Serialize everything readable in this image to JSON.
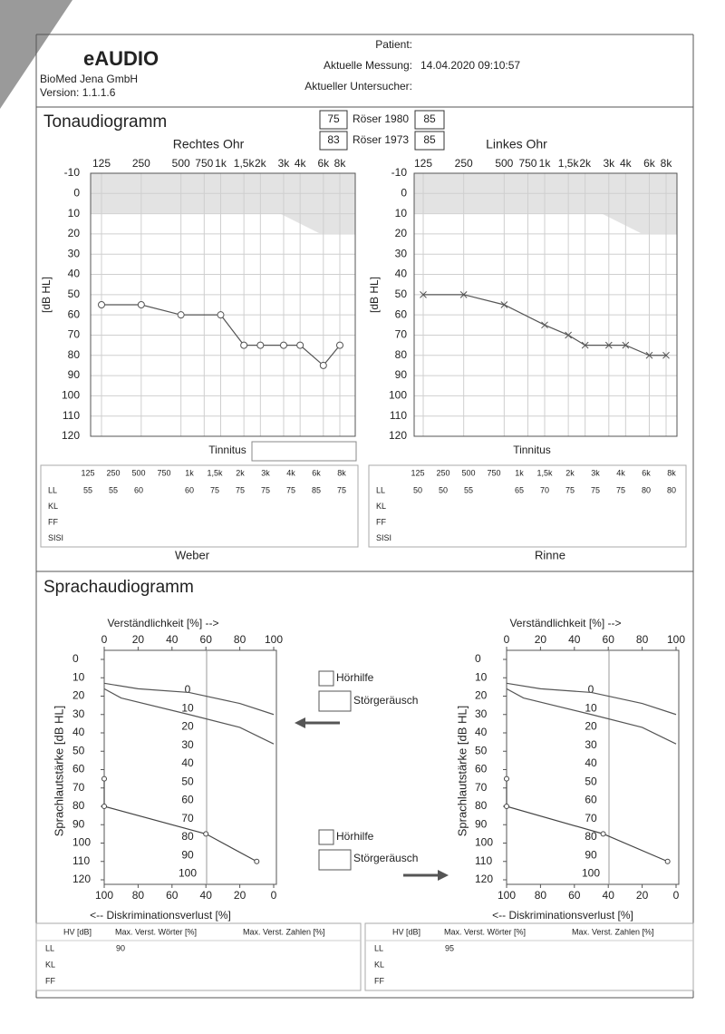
{
  "header": {
    "logo": "eAUDIO",
    "company": "BioMed Jena GmbH",
    "version": "Version: 1.1.1.6",
    "patient_label": "Patient:",
    "measurement_label": "Aktuelle Messung:",
    "measurement_value": "14.04.2020 09:10:57",
    "examiner_label": "Aktueller Untersucher:"
  },
  "tone_audiogram": {
    "title": "Tonaudiogramm",
    "roeser": [
      {
        "label": "Röser 1980",
        "right": 75,
        "left": 85
      },
      {
        "label": "Röser 1973",
        "right": 83,
        "left": 85
      }
    ],
    "xticks": [
      125,
      250,
      500,
      750,
      {
        "value": 1000,
        "label": "1k"
      },
      {
        "value": 1500,
        "label": "1,5k"
      },
      {
        "value": 2000,
        "label": "2k"
      },
      {
        "value": 3000,
        "label": "3k"
      },
      {
        "value": 4000,
        "label": "4k"
      },
      {
        "value": 6000,
        "label": "6k"
      },
      {
        "value": 8000,
        "label": "8k"
      }
    ],
    "log_x": true,
    "ylim": [
      -10,
      120
    ],
    "yticks": [
      -10,
      0,
      10,
      20,
      30,
      40,
      50,
      60,
      70,
      80,
      90,
      100,
      110,
      120
    ],
    "grid": true,
    "y_label": "[dB HL]",
    "tinnitus_label": "Tinnitus",
    "table_rows": [
      "LL",
      "KL",
      "FF",
      "SISI"
    ],
    "ears": [
      {
        "title": "Rechtes Ohr",
        "marker": "circle",
        "color": "#555555",
        "bottom_label": "Weber",
        "x": [
          125,
          250,
          500,
          1000,
          1500,
          2000,
          3000,
          4000,
          6000,
          8000
        ],
        "values": [
          55,
          55,
          60,
          60,
          75,
          75,
          75,
          75,
          85,
          75
        ]
      },
      {
        "title": "Linkes Ohr",
        "marker": "cross",
        "color": "#555555",
        "bottom_label": "Rinne",
        "x": [
          125,
          250,
          500,
          1000,
          1500,
          2000,
          3000,
          4000,
          6000,
          8000
        ],
        "values": [
          50,
          50,
          55,
          65,
          70,
          75,
          75,
          75,
          80,
          80
        ]
      }
    ]
  },
  "speech_audiogram": {
    "title": "Sprachaudiogramm",
    "x_label_top": "Verständlichkeit [%] -->",
    "xlim": [
      0,
      100
    ],
    "xticks": [
      0,
      20,
      40,
      60,
      80,
      100
    ],
    "x_label_bottom": "<-- Diskriminationsverlust [%]",
    "x2lim": [
      100,
      0
    ],
    "x2ticks": [
      100,
      80,
      60,
      40,
      20,
      0
    ],
    "y_label": "Sprachlautstärke [dB HL]",
    "ylim": [
      0,
      120
    ],
    "yticks": [
      0,
      10,
      20,
      30,
      40,
      50,
      60,
      70,
      80,
      90,
      100,
      110,
      120
    ],
    "level_labels": [
      0,
      10,
      20,
      30,
      40,
      50,
      60,
      70,
      80,
      90,
      100
    ],
    "reference_curves": [
      {
        "x": [
          0,
          20,
          50,
          80,
          100
        ],
        "values": [
          13,
          16,
          18,
          24,
          30
        ]
      },
      {
        "x": [
          0,
          10,
          50,
          80,
          100
        ],
        "values": [
          16,
          21,
          30,
          37,
          46
        ]
      }
    ],
    "options": [
      "Hörhilfe",
      "Störgeräusch"
    ],
    "table_header": [
      "HV [dB]",
      "Max. Verst. Wörter [%]",
      "Max. Verst. Zahlen [%]"
    ],
    "table_rows": [
      "LL",
      "KL",
      "FF"
    ],
    "ears": [
      {
        "color": "#444444",
        "x": [
          0,
          0,
          60,
          90
        ],
        "values": [
          65,
          80,
          95,
          110
        ],
        "ll_words": 90
      },
      {
        "color": "#444444",
        "x": [
          0,
          0,
          57,
          95
        ],
        "values": [
          65,
          80,
          95,
          110
        ],
        "ll_words": 95
      }
    ]
  }
}
